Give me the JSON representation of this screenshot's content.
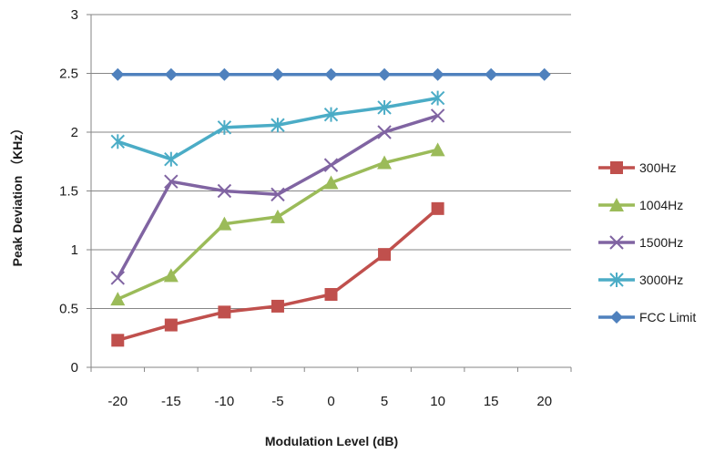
{
  "chart_data": {
    "type": "line",
    "xlabel": "Modulation Level (dB)",
    "ylabel": "Peak Deviation （KHz）",
    "xlim": [
      -22.5,
      22.5
    ],
    "ylim": [
      0,
      3
    ],
    "xticks": [
      "-20",
      "-15",
      "-10",
      "-5",
      "0",
      "5",
      "10",
      "15",
      "20"
    ],
    "xtick_values": [
      -20,
      -15,
      -10,
      -5,
      0,
      5,
      10,
      15,
      20
    ],
    "yticks": [
      "0",
      "0.5",
      "1",
      "1.5",
      "2",
      "2.5",
      "3"
    ],
    "ytick_values": [
      0,
      0.5,
      1,
      1.5,
      2,
      2.5,
      3
    ],
    "grid": "horizontal",
    "legend_position": "right",
    "series": [
      {
        "name": "300Hz",
        "color": "#c0504d",
        "marker": "square",
        "x": [
          -20,
          -15,
          -10,
          -5,
          0,
          5,
          10
        ],
        "y": [
          0.23,
          0.36,
          0.47,
          0.52,
          0.62,
          0.96,
          1.35
        ]
      },
      {
        "name": "1004Hz",
        "color": "#9bbb59",
        "marker": "triangle",
        "x": [
          -20,
          -15,
          -10,
          -5,
          0,
          5,
          10
        ],
        "y": [
          0.58,
          0.78,
          1.22,
          1.28,
          1.57,
          1.74,
          1.85
        ]
      },
      {
        "name": "1500Hz",
        "color": "#8064a2",
        "marker": "x",
        "x": [
          -20,
          -15,
          -10,
          -5,
          0,
          5,
          10
        ],
        "y": [
          0.76,
          1.58,
          1.5,
          1.47,
          1.72,
          2.0,
          2.14
        ]
      },
      {
        "name": "3000Hz",
        "color": "#4bacc6",
        "marker": "star",
        "x": [
          -20,
          -15,
          -10,
          -5,
          0,
          5,
          10
        ],
        "y": [
          1.92,
          1.77,
          2.04,
          2.06,
          2.15,
          2.21,
          2.29
        ]
      },
      {
        "name": "FCC Limit",
        "color": "#4f81bd",
        "marker": "diamond",
        "x": [
          -20,
          -15,
          -10,
          -5,
          0,
          5,
          10,
          15,
          20
        ],
        "y": [
          2.49,
          2.49,
          2.49,
          2.49,
          2.49,
          2.49,
          2.49,
          2.49,
          2.49
        ]
      }
    ]
  }
}
